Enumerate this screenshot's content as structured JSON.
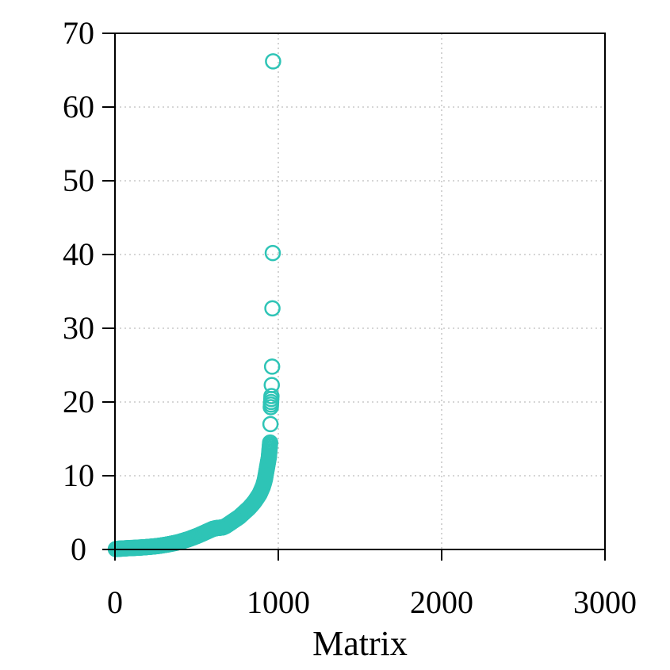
{
  "chart_data": {
    "type": "scatter",
    "title": "",
    "xlabel": "Matrix",
    "ylabel": "",
    "xlim": [
      0,
      3000
    ],
    "ylim": [
      0,
      70
    ],
    "xticks": [
      0,
      1000,
      2000,
      3000
    ],
    "yticks": [
      0,
      10,
      20,
      30,
      40,
      50,
      60,
      70
    ],
    "grid": true,
    "legend": "none",
    "marker": "open-circle",
    "color": "#2ec4b6",
    "series": [
      {
        "x": [
          5,
          20,
          40,
          60,
          80,
          100,
          120,
          150,
          180,
          210,
          240,
          270,
          300,
          330,
          360,
          390,
          420,
          450,
          480,
          510,
          540,
          570,
          600,
          620,
          640,
          660,
          680,
          700,
          720,
          740,
          760,
          780,
          800,
          820,
          840,
          855,
          870,
          885,
          895,
          905,
          912,
          918,
          922,
          926,
          930,
          934,
          938,
          942,
          944,
          946,
          948,
          950,
          952,
          954,
          956,
          958,
          960,
          962,
          964,
          966,
          968
        ],
        "y": [
          0.05,
          0.1,
          0.12,
          0.15,
          0.18,
          0.2,
          0.22,
          0.26,
          0.3,
          0.36,
          0.42,
          0.5,
          0.6,
          0.72,
          0.85,
          1.0,
          1.2,
          1.4,
          1.65,
          1.9,
          2.2,
          2.5,
          2.8,
          2.9,
          2.95,
          3.0,
          3.2,
          3.5,
          3.8,
          4.1,
          4.4,
          4.8,
          5.2,
          5.6,
          6.1,
          6.5,
          7.0,
          7.5,
          8.0,
          8.5,
          9.0,
          9.5,
          10.0,
          10.5,
          11.0,
          11.5,
          12.0,
          12.5,
          13.0,
          13.5,
          14.0,
          14.5,
          17.0,
          19.3,
          20.0,
          20.8,
          22.3,
          24.8,
          32.7,
          40.2,
          66.2
        ]
      }
    ]
  }
}
